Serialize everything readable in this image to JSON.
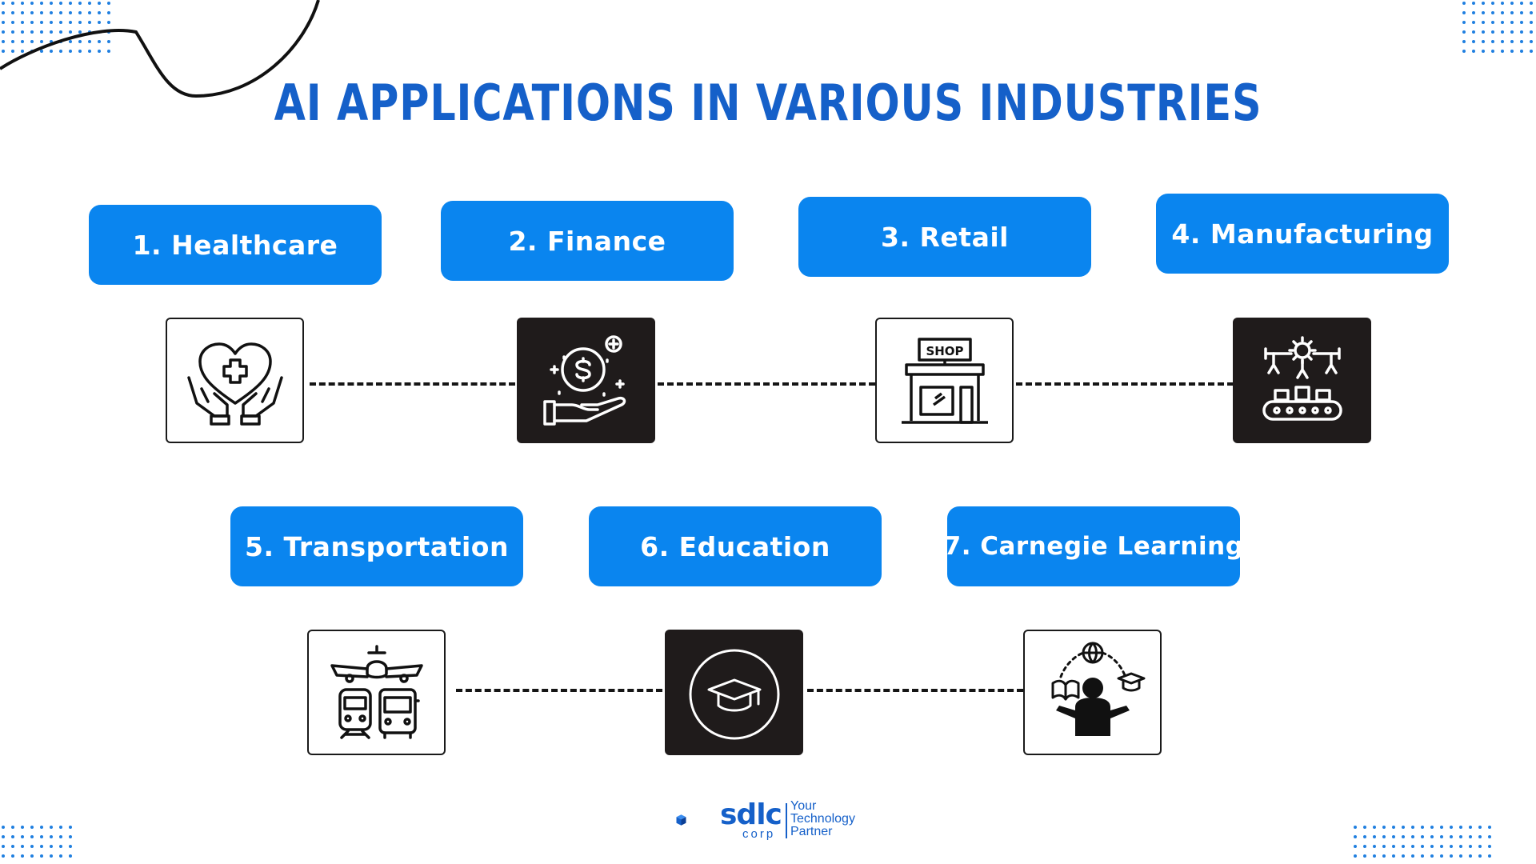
{
  "title": "AI APPLICATIONS IN VARIOUS INDUSTRIES",
  "industries": [
    {
      "label": "1. Healthcare",
      "icon": "healthcare-hands-heart-icon",
      "style": "light"
    },
    {
      "label": "2. Finance",
      "icon": "finance-hand-coin-icon",
      "style": "dark"
    },
    {
      "label": "3. Retail",
      "icon": "shop-storefront-icon",
      "style": "light"
    },
    {
      "label": "4. Manufacturing",
      "icon": "robotic-arms-conveyor-icon",
      "style": "dark"
    },
    {
      "label": "5. Transportation",
      "icon": "plane-train-bus-icon",
      "style": "light"
    },
    {
      "label": "6. Education",
      "icon": "graduation-cap-icon",
      "style": "dark"
    },
    {
      "label": "7. Carnegie Learning",
      "icon": "learner-globe-book-icon",
      "style": "light"
    }
  ],
  "shop_sign": "SHOP",
  "logo": {
    "brand": "sdlc",
    "sub": "corp",
    "tagline": [
      "Your",
      "Technology",
      "Partner"
    ]
  },
  "colors": {
    "accent": "#0a85ef",
    "title": "#1560c9",
    "dark_tile": "#1f1b1b"
  }
}
